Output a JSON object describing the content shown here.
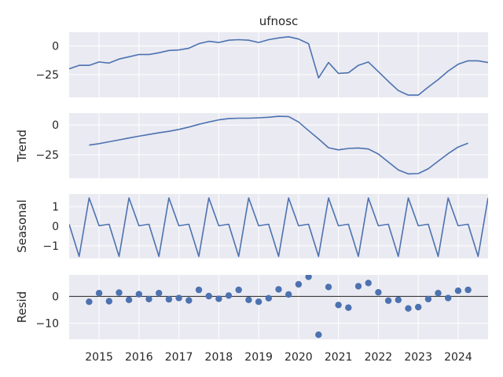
{
  "chart_data": [
    {
      "type": "line",
      "panel": "observed",
      "title": "ufnosc",
      "ylabel": "",
      "ylim": [
        -45,
        12
      ],
      "yticks": [
        0,
        -25
      ],
      "x": [
        2014.25,
        2014.5,
        2014.75,
        2015.0,
        2015.25,
        2015.5,
        2015.75,
        2016.0,
        2016.25,
        2016.5,
        2016.75,
        2017.0,
        2017.25,
        2017.5,
        2017.75,
        2018.0,
        2018.25,
        2018.5,
        2018.75,
        2019.0,
        2019.25,
        2019.5,
        2019.75,
        2020.0,
        2020.25,
        2020.5,
        2020.75,
        2021.0,
        2021.25,
        2021.5,
        2021.75,
        2022.0,
        2022.25,
        2022.5,
        2022.75,
        2023.0,
        2023.25,
        2023.5,
        2023.75,
        2024.0,
        2024.25,
        2024.5,
        2024.75
      ],
      "y": [
        -20,
        -17,
        -17,
        -14,
        -15,
        -11.5,
        -9.5,
        -7.5,
        -7.5,
        -6,
        -4,
        -3.5,
        -2,
        2,
        4,
        3,
        5,
        5.5,
        5,
        3,
        5.5,
        7,
        8,
        6,
        2,
        -28,
        -14.5,
        -24,
        -23.5,
        -17,
        -14,
        -22.5,
        -31,
        -39,
        -43,
        -43,
        -36,
        -29.5,
        -22,
        -16,
        -13,
        -13,
        -14.5
      ]
    },
    {
      "type": "line",
      "panel": "trend",
      "title": "",
      "ylabel": "Trend",
      "ylim": [
        -45,
        10
      ],
      "yticks": [
        0,
        -25
      ],
      "x": [
        2014.75,
        2015.0,
        2015.25,
        2015.5,
        2015.75,
        2016.0,
        2016.25,
        2016.5,
        2016.75,
        2017.0,
        2017.25,
        2017.5,
        2017.75,
        2018.0,
        2018.25,
        2018.5,
        2018.75,
        2019.0,
        2019.25,
        2019.5,
        2019.75,
        2020.0,
        2020.25,
        2020.5,
        2020.75,
        2021.0,
        2021.25,
        2021.5,
        2021.75,
        2022.0,
        2022.25,
        2022.5,
        2022.75,
        2023.0,
        2023.25,
        2023.5,
        2023.75,
        2024.0,
        2024.25
      ],
      "y": [
        -17,
        -15.8,
        -14.2,
        -12.6,
        -11,
        -9.5,
        -8,
        -6.6,
        -5.4,
        -3.8,
        -1.8,
        0.5,
        2.5,
        4.3,
        5.4,
        5.7,
        5.7,
        6,
        6.5,
        7.3,
        7.1,
        2.5,
        -4.8,
        -11.8,
        -19.2,
        -21,
        -19.8,
        -19.4,
        -20.3,
        -24.5,
        -31.3,
        -38,
        -41.3,
        -41,
        -37,
        -30.6,
        -24.2,
        -18.6,
        -15.3
      ]
    },
    {
      "type": "line",
      "panel": "seasonal",
      "title": "",
      "ylabel": "Seasonal",
      "ylim": [
        -1.65,
        1.65
      ],
      "yticks": [
        1,
        0,
        -1
      ],
      "x": [
        2014.25,
        2014.5,
        2014.75,
        2015.0,
        2015.25,
        2015.5,
        2015.75,
        2016.0,
        2016.25,
        2016.5,
        2016.75,
        2017.0,
        2017.25,
        2017.5,
        2017.75,
        2018.0,
        2018.25,
        2018.5,
        2018.75,
        2019.0,
        2019.25,
        2019.5,
        2019.75,
        2020.0,
        2020.25,
        2020.5,
        2020.75,
        2021.0,
        2021.25,
        2021.5,
        2021.75,
        2022.0,
        2022.25,
        2022.5,
        2022.75,
        2023.0,
        2023.25,
        2023.5,
        2023.75,
        2024.0,
        2024.25,
        2024.5,
        2024.75
      ],
      "y": [
        0.1,
        -1.55,
        1.45,
        0.02,
        0.1,
        -1.55,
        1.45,
        0.02,
        0.1,
        -1.55,
        1.45,
        0.02,
        0.1,
        -1.55,
        1.45,
        0.02,
        0.1,
        -1.55,
        1.45,
        0.02,
        0.1,
        -1.55,
        1.45,
        0.02,
        0.1,
        -1.55,
        1.45,
        0.02,
        0.1,
        -1.55,
        1.45,
        0.02,
        0.1,
        -1.55,
        1.45,
        0.02,
        0.1,
        -1.55,
        1.45,
        0.02,
        0.1,
        -1.55,
        1.45
      ]
    },
    {
      "type": "scatter",
      "panel": "resid",
      "title": "",
      "ylabel": "Resid",
      "ylim": [
        -16,
        8
      ],
      "yticks": [
        0,
        -10
      ],
      "zero_line": true,
      "x": [
        2014.75,
        2015.0,
        2015.25,
        2015.5,
        2015.75,
        2016.0,
        2016.25,
        2016.5,
        2016.75,
        2017.0,
        2017.25,
        2017.5,
        2017.75,
        2018.0,
        2018.25,
        2018.5,
        2018.75,
        2019.0,
        2019.25,
        2019.5,
        2019.75,
        2020.0,
        2020.25,
        2020.5,
        2020.75,
        2021.0,
        2021.25,
        2021.5,
        2021.75,
        2022.0,
        2022.25,
        2022.5,
        2022.75,
        2023.0,
        2023.25,
        2023.5,
        2023.75,
        2024.0,
        2024.25
      ],
      "y": [
        -2,
        1.2,
        -1.8,
        1.4,
        -1.3,
        0.8,
        -1,
        1.2,
        -1.1,
        -0.6,
        -1.5,
        2.4,
        0.1,
        -0.9,
        0.3,
        2.4,
        -1.3,
        -2,
        -0.7,
        2.6,
        0.7,
        4.5,
        7.3,
        -14.3,
        3.5,
        -3.2,
        -4.2,
        3.8,
        5,
        1.5,
        -1.6,
        -1.3,
        -4.5,
        -4,
        -1,
        1.2,
        -0.6,
        2.1,
        2.4
      ]
    }
  ],
  "x_axis": {
    "xlim": [
      2014.25,
      2024.75
    ],
    "ticks": [
      2015,
      2016,
      2017,
      2018,
      2019,
      2020,
      2021,
      2022,
      2023,
      2024
    ],
    "tick_labels": [
      "2015",
      "2016",
      "2017",
      "2018",
      "2019",
      "2020",
      "2021",
      "2022",
      "2023",
      "2024"
    ]
  },
  "colors": {
    "line": "#4c72b0",
    "axes_bg": "#eaeaf2",
    "grid": "#ffffff",
    "text": "#262626",
    "zero_line": "#000000"
  }
}
